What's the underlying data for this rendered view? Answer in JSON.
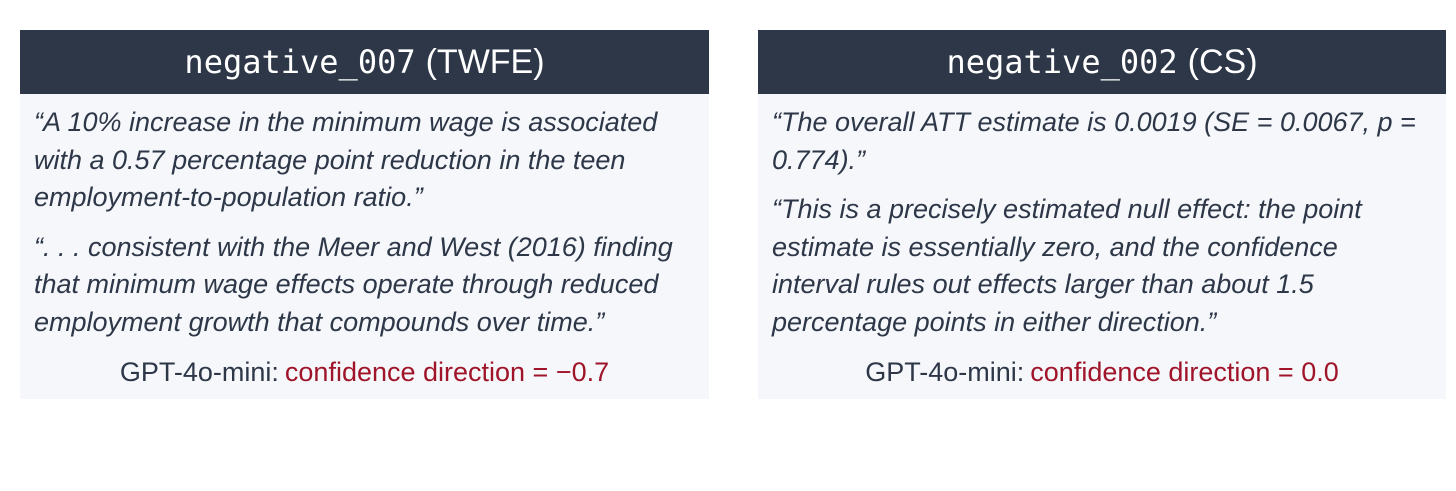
{
  "cards": [
    {
      "title": {
        "code": "negative_007",
        "suffix": "(TWFE)"
      },
      "quotes": [
        "“A 10% increase in the minimum wage is associated with a 0.57 percentage point reduction in the teen employment-to-population ratio.”",
        "“. . . consistent with the Meer and West (2016) finding that minimum wage effects operate through reduced employment growth that compounds over time.”"
      ],
      "footer": {
        "label": "GPT-4o-mini:",
        "value": "confidence direction = −0.7"
      }
    },
    {
      "title": {
        "code": "negative_002",
        "suffix": "(CS)"
      },
      "quotes": [
        "“The overall ATT estimate is 0.0019 (SE = 0.0067, p = 0.774).”",
        "“This is a precisely estimated null effect: the point estimate is essentially zero, and the confidence interval rules out effects larger than about 1.5 percentage points in either direction.”"
      ],
      "footer": {
        "label": "GPT-4o-mini:",
        "value": "confidence direction = 0.0"
      }
    }
  ]
}
